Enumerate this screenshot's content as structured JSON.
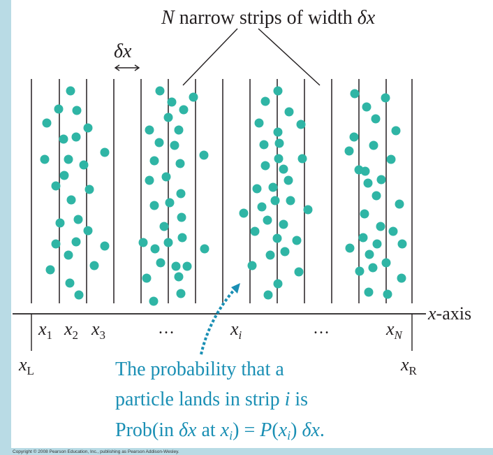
{
  "title": {
    "n": "N",
    "text": " narrow strips of width ",
    "delta_x": "δx"
  },
  "width_label": "δx",
  "axis": {
    "label": "-axis",
    "label_var": "x"
  },
  "tick_labels": {
    "x1": {
      "base": "x",
      "sub": "1"
    },
    "x2": {
      "base": "x",
      "sub": "2"
    },
    "x3": {
      "base": "x",
      "sub": "3"
    },
    "ellipsis_left": "…",
    "xi": {
      "base": "x",
      "sub": "i"
    },
    "ellipsis_right": "…",
    "xN": {
      "base": "x",
      "sub": "N"
    },
    "xL": {
      "base": "x",
      "sub": "L"
    },
    "xR": {
      "base": "x",
      "sub": "R"
    }
  },
  "caption": {
    "line1": "The probability that a",
    "line2_text": "particle lands in strip ",
    "line2_var": "i",
    "line2_end": " is",
    "line3": {
      "a": "Prob(in ",
      "dx": "δx",
      "b": " at ",
      "x": "x",
      "sub": "i",
      "c": ") = ",
      "P": "P",
      "d": "(",
      "x2": "x",
      "sub2": "i",
      "e": ") ",
      "dx2": "δx",
      "f": "."
    }
  },
  "copyright": "Copyright © 2008 Pearson Education, Inc., publishing as Pearson Addison-Wesley.",
  "colors": {
    "background": "#b9dbe5",
    "panel": "#ffffff",
    "particle": "#2fb5a5",
    "caption": "#1a8fb4",
    "line": "#231f20"
  }
}
